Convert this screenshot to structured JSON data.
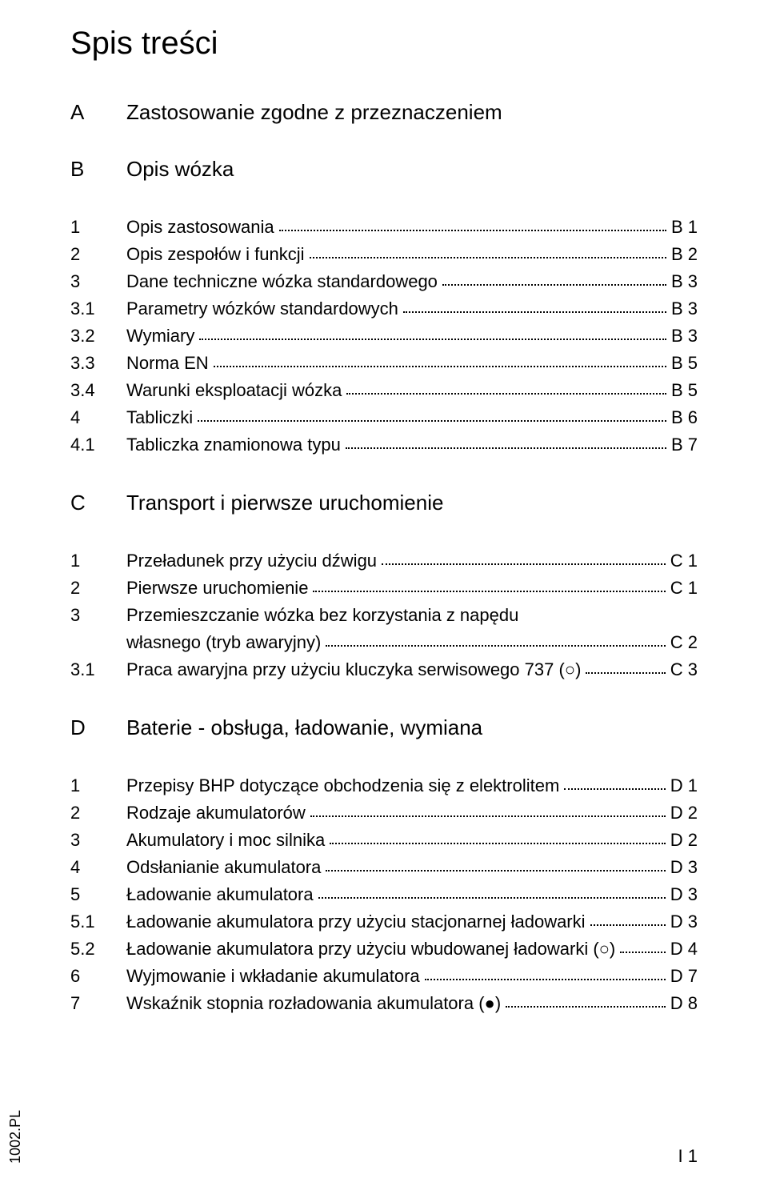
{
  "title": "Spis treści",
  "sections": [
    {
      "letter": "A",
      "title": "Zastosowanie zgodne z przeznaczeniem"
    },
    {
      "letter": "B",
      "title": "Opis wózka"
    },
    {
      "letter": "C",
      "title": "Transport i pierwsze uruchomienie"
    },
    {
      "letter": "D",
      "title": "Baterie - obsługa, ładowanie, wymiana"
    }
  ],
  "toc": {
    "B": [
      {
        "num": "1",
        "text": "Opis zastosowania",
        "page": "B 1"
      },
      {
        "num": "2",
        "text": "Opis zespołów i funkcji",
        "page": "B 2"
      },
      {
        "num": "3",
        "text": "Dane techniczne wózka standardowego",
        "page": "B 3"
      },
      {
        "num": "3.1",
        "text": "Parametry wózków standardowych",
        "page": "B 3"
      },
      {
        "num": "3.2",
        "text": "Wymiary",
        "page": "B 3"
      },
      {
        "num": "3.3",
        "text": "Norma EN",
        "page": "B 5"
      },
      {
        "num": "3.4",
        "text": "Warunki eksploatacji wózka",
        "page": "B 5"
      },
      {
        "num": "4",
        "text": "Tabliczki",
        "page": "B 6"
      },
      {
        "num": "4.1",
        "text": "Tabliczka znamionowa typu",
        "page": "B 7"
      }
    ],
    "C": [
      {
        "num": "1",
        "text": "Przeładunek przy użyciu dźwigu",
        "page": "C 1"
      },
      {
        "num": "2",
        "text": "Pierwsze uruchomienie",
        "page": "C 1"
      },
      {
        "num": "3",
        "text_line1": "Przemieszczanie wózka bez korzystania z napędu",
        "text_line2": "własnego (tryb awaryjny)",
        "page": "C 2",
        "wrap": true
      },
      {
        "num": "3.1",
        "text": "Praca awaryjna przy użyciu kluczyka serwisowego 737 (○)",
        "page": "C 3"
      }
    ],
    "D": [
      {
        "num": "1",
        "text": "Przepisy BHP dotyczące obchodzenia się z elektrolitem",
        "page": "D 1"
      },
      {
        "num": "2",
        "text": "Rodzaje akumulatorów",
        "page": "D 2"
      },
      {
        "num": "3",
        "text": "Akumulatory i moc silnika",
        "page": "D 2"
      },
      {
        "num": "4",
        "text": "Odsłanianie akumulatora",
        "page": "D 3"
      },
      {
        "num": "5",
        "text": "Ładowanie akumulatora",
        "page": "D 3"
      },
      {
        "num": "5.1",
        "text": "Ładowanie akumulatora przy użyciu stacjonarnej ładowarki",
        "page": "D 3"
      },
      {
        "num": "5.2",
        "text": "Ładowanie akumulatora przy użyciu wbudowanej ładowarki (○)",
        "page": "D 4"
      },
      {
        "num": "6",
        "text": "Wyjmowanie i wkładanie akumulatora",
        "page": "D 7"
      },
      {
        "num": "7",
        "text": "Wskaźnik stopnia rozładowania akumulatora (●)",
        "page": "D 8"
      }
    ]
  },
  "footer": {
    "left": "1002.PL",
    "right": "I 1"
  }
}
